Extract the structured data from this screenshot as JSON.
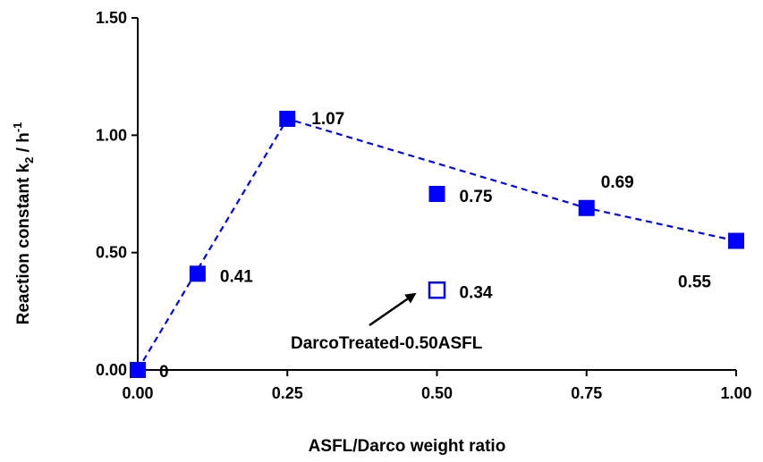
{
  "chart_data": {
    "type": "scatter",
    "xlabel": "ASFL/Darco weight ratio",
    "ylabel": {
      "main": "Reaction constant k",
      "sub": "2",
      "mid": " / h",
      "sup": "-1"
    },
    "xlim": [
      0,
      1
    ],
    "ylim": [
      0,
      1.5
    ],
    "x_ticks": [
      "0.00",
      "0.25",
      "0.50",
      "0.75",
      "1.00"
    ],
    "y_ticks": [
      "0.00",
      "0.50",
      "1.00",
      "1.50"
    ],
    "grid": false,
    "series": [
      {
        "marker": "filled-square",
        "color": "#0000ff",
        "line": "dashed",
        "points": [
          {
            "x": 0.0,
            "y": 0.0,
            "label": "0"
          },
          {
            "x": 0.1,
            "y": 0.41,
            "label": "0.41"
          },
          {
            "x": 0.25,
            "y": 1.07,
            "label": "1.07"
          },
          {
            "x": 0.5,
            "y": 0.75,
            "label": "0.75"
          },
          {
            "x": 0.75,
            "y": 0.69,
            "label": "0.69"
          },
          {
            "x": 1.0,
            "y": 0.55,
            "label": "0.55"
          }
        ],
        "connected_x": [
          0.0,
          0.25,
          0.75,
          1.0
        ]
      },
      {
        "marker": "open-square",
        "color": "#0000ff",
        "points": [
          {
            "x": 0.5,
            "y": 0.34,
            "label": "0.34"
          }
        ]
      }
    ],
    "annotation": {
      "text": "DarcoTreated-0.50ASFL",
      "points_to": {
        "x": 0.5,
        "y": 0.34
      }
    }
  }
}
